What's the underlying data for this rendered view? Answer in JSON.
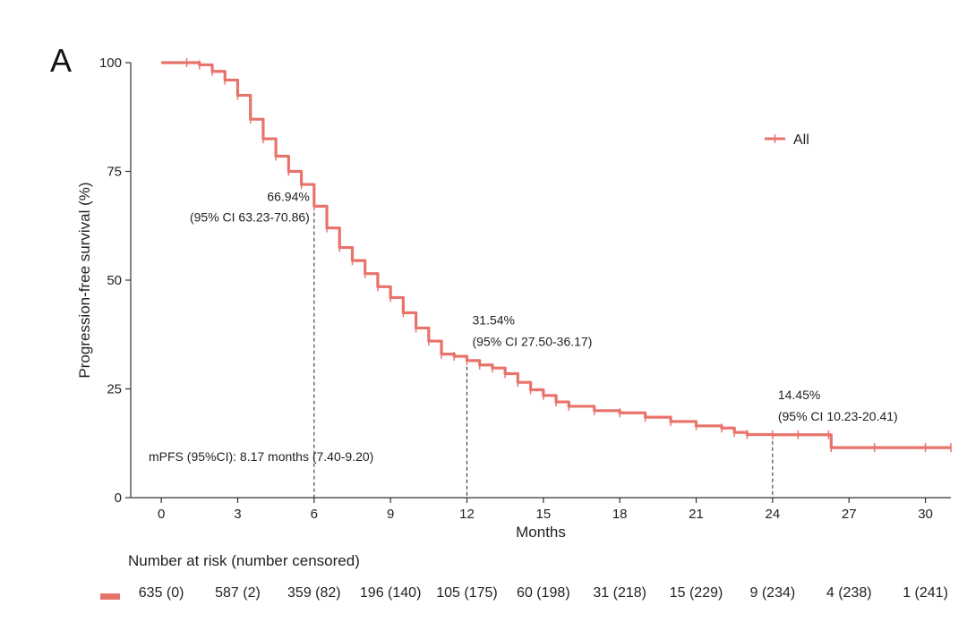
{
  "chart_data": {
    "type": "line",
    "panel_label": "A",
    "xlabel": "Months",
    "ylabel": "Progression-free survival (%)",
    "xlim": [
      -1.2,
      31
    ],
    "ylim": [
      0,
      100
    ],
    "x_ticks": [
      0,
      3,
      6,
      9,
      12,
      15,
      18,
      21,
      24,
      27,
      30
    ],
    "y_ticks": [
      0,
      25,
      50,
      75,
      100
    ],
    "color": "#e8736b",
    "legend": {
      "position": "top-right",
      "entries": [
        "All"
      ]
    },
    "series": [
      {
        "name": "All",
        "x": [
          0,
          1,
          1.5,
          2,
          2.5,
          3,
          3.5,
          4,
          4.5,
          5,
          5.5,
          6,
          6.5,
          7,
          7.5,
          8,
          8.5,
          9,
          9.5,
          10,
          10.5,
          11,
          11.5,
          12,
          12.5,
          13,
          13.5,
          14,
          14.5,
          15,
          15.5,
          16,
          17,
          18,
          19,
          20,
          21,
          22,
          22.5,
          23,
          24,
          25,
          26.2,
          26.3,
          28,
          30,
          31
        ],
        "y": [
          100,
          100,
          99.5,
          98,
          96,
          92.5,
          87,
          82.5,
          78.5,
          75,
          72,
          67,
          62,
          57.5,
          54.5,
          51.5,
          48.5,
          46,
          42.5,
          39,
          36,
          33,
          32.5,
          31.5,
          30.5,
          29.8,
          28.5,
          26.5,
          24.8,
          23.5,
          22,
          21,
          20,
          19.5,
          18.5,
          17.5,
          16.5,
          16,
          15,
          14.5,
          14.45,
          14.45,
          14.45,
          11.5,
          11.5,
          11.5,
          11.5
        ]
      }
    ],
    "reference_lines": [
      {
        "x": 6,
        "y": 66.94
      },
      {
        "x": 12,
        "y": 31.54
      },
      {
        "x": 24,
        "y": 14.45
      }
    ],
    "annotations": [
      {
        "x": 6,
        "y": 66.94,
        "value": "66.94%",
        "ci": "(95% CI 63.23-70.86)",
        "align": "end"
      },
      {
        "x": 12,
        "y": 31.54,
        "value": "31.54%",
        "ci": "(95% CI 27.50-36.17)",
        "align": "start"
      },
      {
        "x": 24,
        "y": 14.45,
        "value": "14.45%",
        "ci": "(95% CI 10.23-20.41)",
        "align": "start"
      }
    ],
    "median_text": "mPFS (95%CI): 8.17 months (7.40-9.20)"
  },
  "risk_table": {
    "title": "Number at risk (number censored)",
    "months": [
      0,
      3,
      6,
      9,
      12,
      15,
      18,
      21,
      24,
      27,
      30
    ],
    "cells": [
      "635 (0)",
      "587 (2)",
      "359 (82)",
      "196 (140)",
      "105 (175)",
      "60 (198)",
      "31 (218)",
      "15 (229)",
      "9 (234)",
      "4 (238)",
      "1 (241)"
    ]
  }
}
